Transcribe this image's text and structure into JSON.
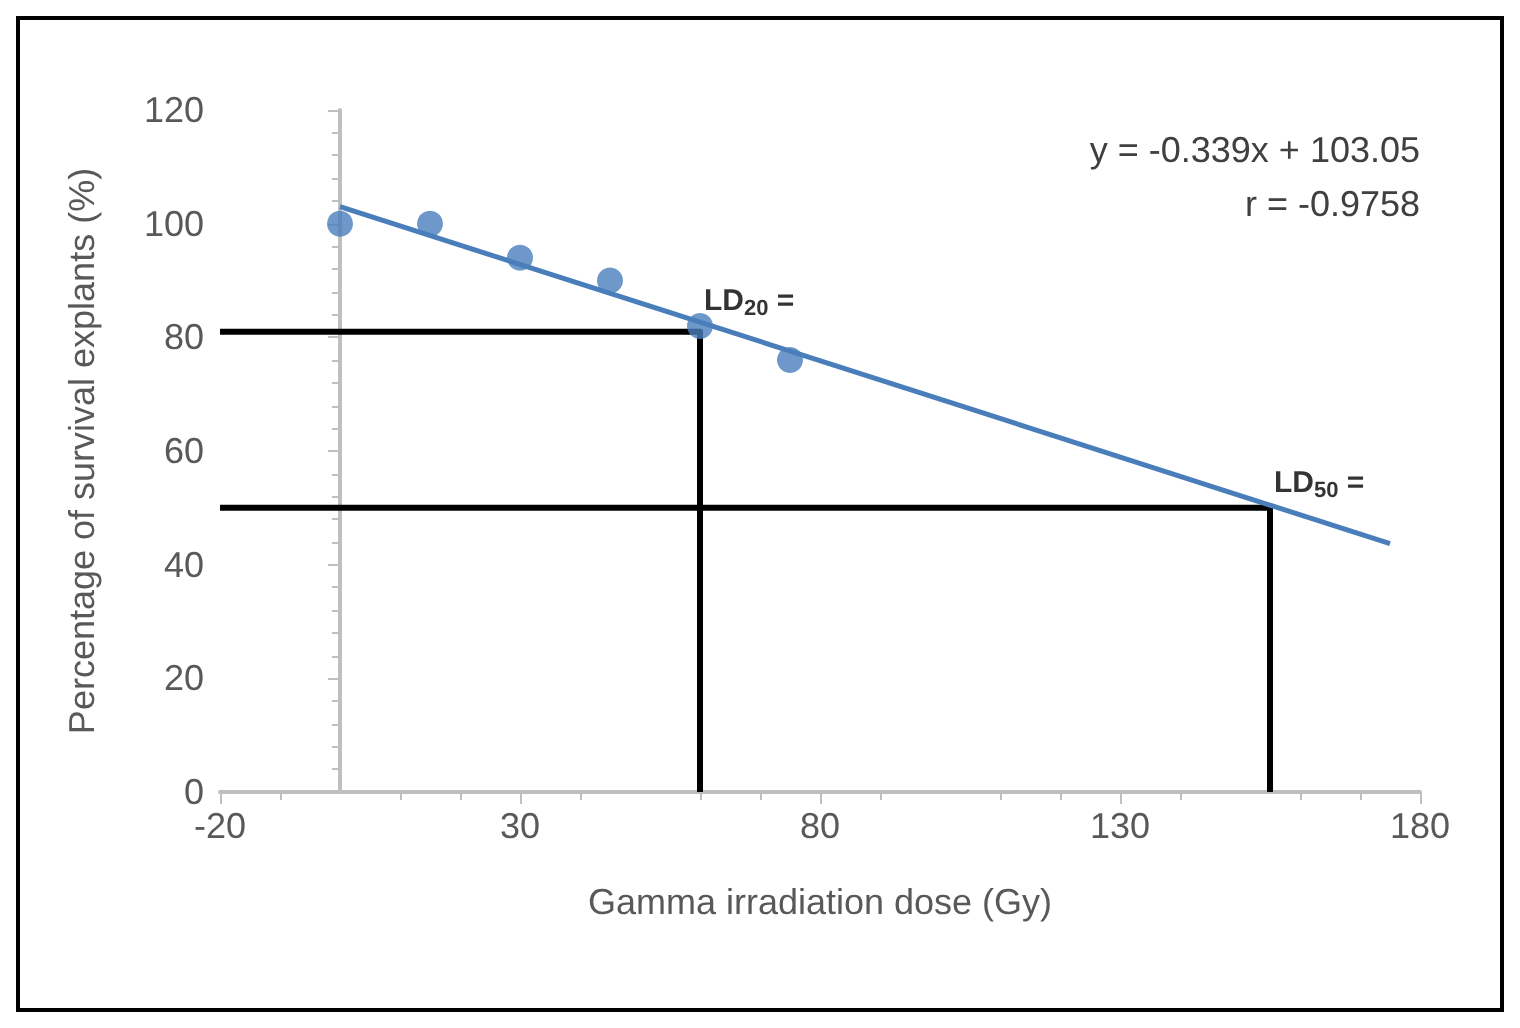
{
  "chart_data": {
    "type": "scatter",
    "xlabel": "Gamma irradiation dose (Gy)",
    "ylabel": "Percentage of survival explants (%)",
    "xlim": [
      -20,
      180
    ],
    "xticks": [
      -20,
      30,
      80,
      130,
      180
    ],
    "ylim": [
      0,
      120
    ],
    "yticks": [
      0,
      20,
      40,
      60,
      80,
      100,
      120
    ],
    "grid": false,
    "marker": "circle",
    "x": [
      0,
      15,
      30,
      45,
      60,
      75
    ],
    "series": [
      {
        "color": "#4a7ebb",
        "values": [
          100,
          100,
          94,
          90,
          82,
          76
        ]
      },
      {
        "type": "line",
        "color": "#4a7ebb",
        "x": [
          0,
          175
        ],
        "values": [
          103,
          43.7
        ],
        "marker": "none",
        "line_style": "solid"
      },
      {
        "type": "line",
        "color": "#000000",
        "x": [
          -20,
          60,
          60
        ],
        "values": [
          81,
          81,
          0
        ],
        "marker": "none",
        "line_style": "solid"
      },
      {
        "type": "line",
        "color": "#000000",
        "x": [
          -20,
          155,
          155
        ],
        "values": [
          50,
          50,
          0
        ],
        "marker": "none",
        "line_style": "solid"
      }
    ],
    "annotations": [
      "y = -0.339x + 103.05",
      "r = -0.9758",
      {
        "text": "LD$_{20}$ =",
        "x": 60,
        "y": 82
      },
      {
        "text": "LD$_{50}$ =",
        "x": 155,
        "y": 50
      }
    ]
  }
}
